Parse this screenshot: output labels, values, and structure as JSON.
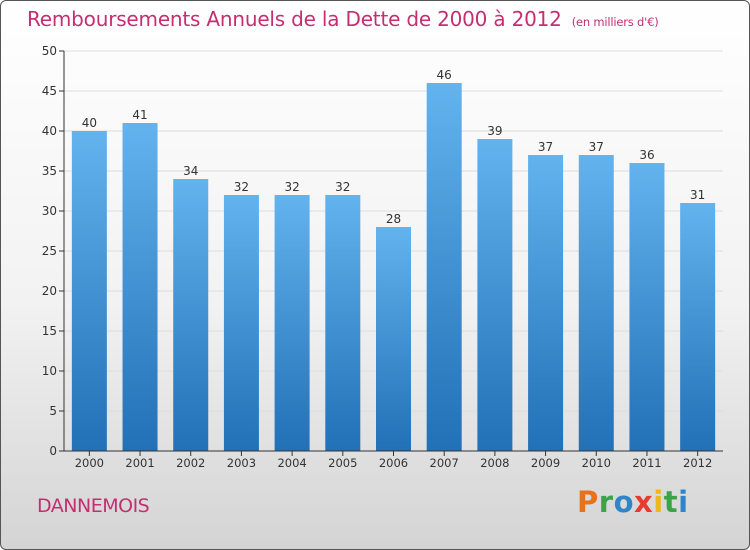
{
  "title": "Remboursements Annuels de la Dette de 2000 à 2012",
  "subtitle": "(en milliers d'€)",
  "commune": "DANNEMOIS",
  "logo": {
    "letters": [
      "P",
      "r",
      "o",
      "x",
      "i",
      "t",
      "i"
    ],
    "colors": [
      "#e8711c",
      "#3aa546",
      "#2e86c9",
      "#e83a2e",
      "#f2b51b",
      "#3aa546",
      "#2e86c9"
    ]
  },
  "colors": {
    "title": "#c42f72",
    "bar_top": "#62b3ee",
    "bar_bottom": "#2270b6",
    "axis": "#333333",
    "grid": "#dddddd"
  },
  "chart_data": {
    "type": "bar",
    "title": "Remboursements Annuels de la Dette de 2000 à 2012",
    "subtitle": "(en milliers d'€)",
    "categories": [
      "2000",
      "2001",
      "2002",
      "2003",
      "2004",
      "2005",
      "2006",
      "2007",
      "2008",
      "2009",
      "2010",
      "2011",
      "2012"
    ],
    "values": [
      40,
      41,
      34,
      32,
      32,
      32,
      28,
      46,
      39,
      37,
      37,
      36,
      31
    ],
    "ylim": [
      0,
      50
    ],
    "yticks": [
      0,
      5,
      10,
      15,
      20,
      25,
      30,
      35,
      40,
      45,
      50
    ],
    "grid": true,
    "xlabel": "",
    "ylabel": ""
  }
}
